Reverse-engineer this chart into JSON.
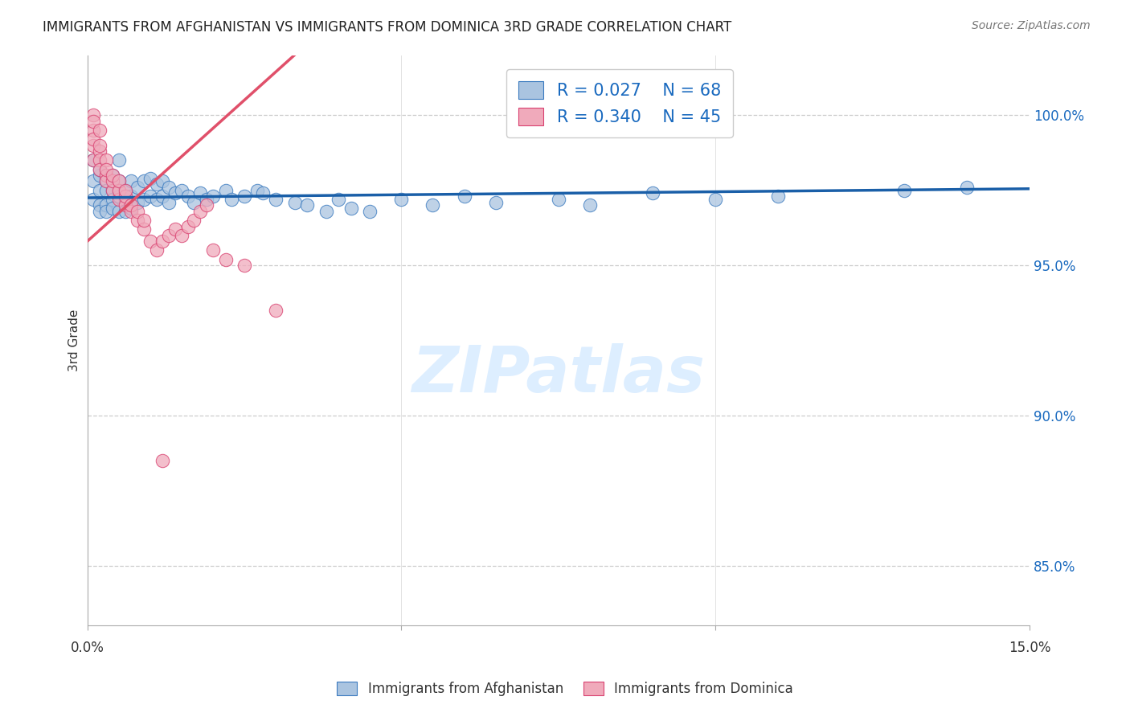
{
  "title": "IMMIGRANTS FROM AFGHANISTAN VS IMMIGRANTS FROM DOMINICA 3RD GRADE CORRELATION CHART",
  "source": "Source: ZipAtlas.com",
  "ylabel": "3rd Grade",
  "yticks": [
    85.0,
    90.0,
    95.0,
    100.0
  ],
  "ytick_labels": [
    "85.0%",
    "90.0%",
    "95.0%",
    "100.0%"
  ],
  "xlim": [
    0.0,
    0.15
  ],
  "ylim": [
    83.0,
    102.0
  ],
  "afghanistan_color": "#aac4e0",
  "afghanistan_edge_color": "#3a7abf",
  "dominica_color": "#f0aabb",
  "dominica_edge_color": "#d94070",
  "afghanistan_line_color": "#1a5fa8",
  "dominica_line_color": "#e0506a",
  "legend_color": "#1a6abf",
  "watermark": "ZIPatlas",
  "watermark_color": "#ddeeff",
  "afghanistan_R": 0.027,
  "afghanistan_N": 68,
  "dominica_R": 0.34,
  "dominica_N": 45,
  "afghanistan_x": [
    0.001,
    0.001,
    0.001,
    0.002,
    0.002,
    0.002,
    0.002,
    0.002,
    0.003,
    0.003,
    0.003,
    0.003,
    0.004,
    0.004,
    0.004,
    0.004,
    0.005,
    0.005,
    0.005,
    0.005,
    0.006,
    0.006,
    0.006,
    0.007,
    0.007,
    0.007,
    0.008,
    0.008,
    0.009,
    0.009,
    0.01,
    0.01,
    0.011,
    0.011,
    0.012,
    0.012,
    0.013,
    0.013,
    0.014,
    0.015,
    0.016,
    0.017,
    0.018,
    0.019,
    0.02,
    0.022,
    0.023,
    0.025,
    0.027,
    0.028,
    0.03,
    0.033,
    0.035,
    0.038,
    0.04,
    0.042,
    0.045,
    0.05,
    0.055,
    0.06,
    0.065,
    0.075,
    0.08,
    0.09,
    0.1,
    0.11,
    0.13,
    0.14
  ],
  "afghanistan_y": [
    98.5,
    97.8,
    97.2,
    98.0,
    97.5,
    97.0,
    96.8,
    98.2,
    97.8,
    97.5,
    97.0,
    96.8,
    98.0,
    97.5,
    97.2,
    96.9,
    98.5,
    97.8,
    97.3,
    96.8,
    97.5,
    97.2,
    96.8,
    97.8,
    97.3,
    96.9,
    97.6,
    97.1,
    97.8,
    97.2,
    97.9,
    97.3,
    97.7,
    97.2,
    97.8,
    97.3,
    97.6,
    97.1,
    97.4,
    97.5,
    97.3,
    97.1,
    97.4,
    97.2,
    97.3,
    97.5,
    97.2,
    97.3,
    97.5,
    97.4,
    97.2,
    97.1,
    97.0,
    96.8,
    97.2,
    96.9,
    96.8,
    97.2,
    97.0,
    97.3,
    97.1,
    97.2,
    97.0,
    97.4,
    97.2,
    97.3,
    97.5,
    97.6
  ],
  "dominica_x": [
    0.001,
    0.001,
    0.001,
    0.001,
    0.001,
    0.001,
    0.002,
    0.002,
    0.002,
    0.002,
    0.002,
    0.003,
    0.003,
    0.003,
    0.003,
    0.004,
    0.004,
    0.004,
    0.005,
    0.005,
    0.005,
    0.006,
    0.006,
    0.006,
    0.007,
    0.007,
    0.008,
    0.008,
    0.009,
    0.009,
    0.01,
    0.011,
    0.012,
    0.013,
    0.014,
    0.015,
    0.016,
    0.017,
    0.018,
    0.019,
    0.02,
    0.022,
    0.025,
    0.03,
    0.012
  ],
  "dominica_y": [
    99.5,
    99.0,
    98.5,
    100.0,
    99.8,
    99.2,
    98.8,
    98.5,
    98.2,
    99.0,
    99.5,
    98.0,
    97.8,
    98.5,
    98.2,
    97.5,
    97.8,
    98.0,
    97.2,
    97.5,
    97.8,
    97.0,
    97.3,
    97.5,
    96.8,
    97.0,
    96.5,
    96.8,
    96.2,
    96.5,
    95.8,
    95.5,
    95.8,
    96.0,
    96.2,
    96.0,
    96.3,
    96.5,
    96.8,
    97.0,
    95.5,
    95.2,
    95.0,
    93.5,
    88.5
  ]
}
